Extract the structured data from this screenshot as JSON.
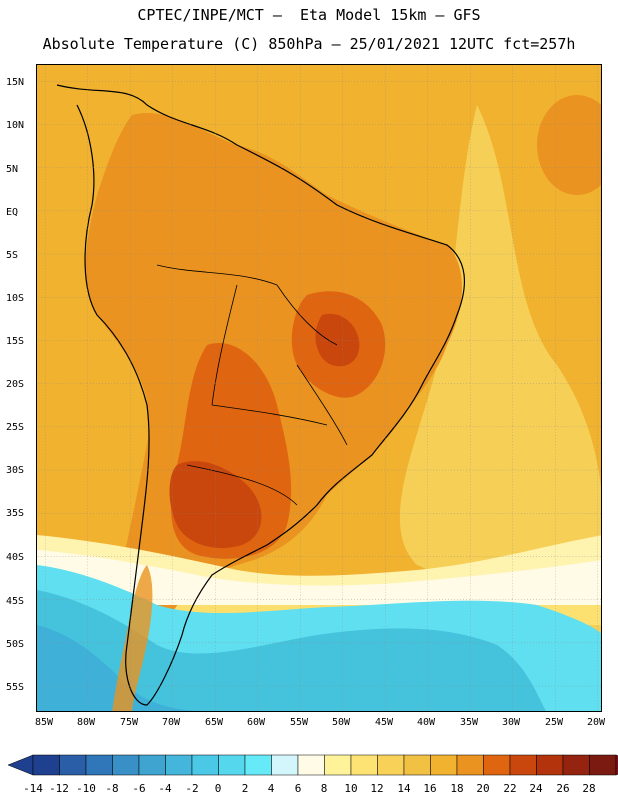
{
  "title_line1": "CPTEC/INPE/MCT –  Eta Model 15km – GFS",
  "title_line2": "Absolute Temperature (C) 850hPa – 25/01/2021 12UTC fct=257h",
  "lat_labels": [
    "15N",
    "10N",
    "5N",
    "EQ",
    "5S",
    "10S",
    "15S",
    "20S",
    "25S",
    "30S",
    "35S",
    "40S",
    "45S",
    "50S",
    "55S"
  ],
  "lon_labels": [
    "85W",
    "80W",
    "75W",
    "70W",
    "65W",
    "60W",
    "55W",
    "50W",
    "45W",
    "40W",
    "35W",
    "30W",
    "25W",
    "20W"
  ],
  "colorbar_labels": [
    "-14",
    "-12",
    "-10",
    "-8",
    "-6",
    "-4",
    "-2",
    "0",
    "2",
    "4",
    "6",
    "8",
    "10",
    "12",
    "14",
    "16",
    "18",
    "20",
    "22",
    "24",
    "26",
    "28"
  ],
  "colors": {
    "ocean_warm": "#f0b22f",
    "ocean_light": "#f6cf56",
    "land_warm": "#ea9320",
    "hot": "#e06510",
    "hotter": "#c9470d",
    "cold": "#5fdff0",
    "colder": "#45c2dc",
    "coldest": "#3fb0d8",
    "pale": "#fff3b0",
    "cream": "#fffbe6"
  },
  "colorbar_colors": [
    "#1f3f8f",
    "#2a5fa8",
    "#2f77b8",
    "#3890c6",
    "#3fa4d0",
    "#44b6db",
    "#4ac8e5",
    "#55d8ee",
    "#66eaf8",
    "#d2f6fb",
    "#fffbe6",
    "#fff39a",
    "#fde274",
    "#f8d258",
    "#f1c143",
    "#f0b22f",
    "#ea9320",
    "#e06510",
    "#c9470d",
    "#b3330c",
    "#942410",
    "#7a1a10"
  ]
}
